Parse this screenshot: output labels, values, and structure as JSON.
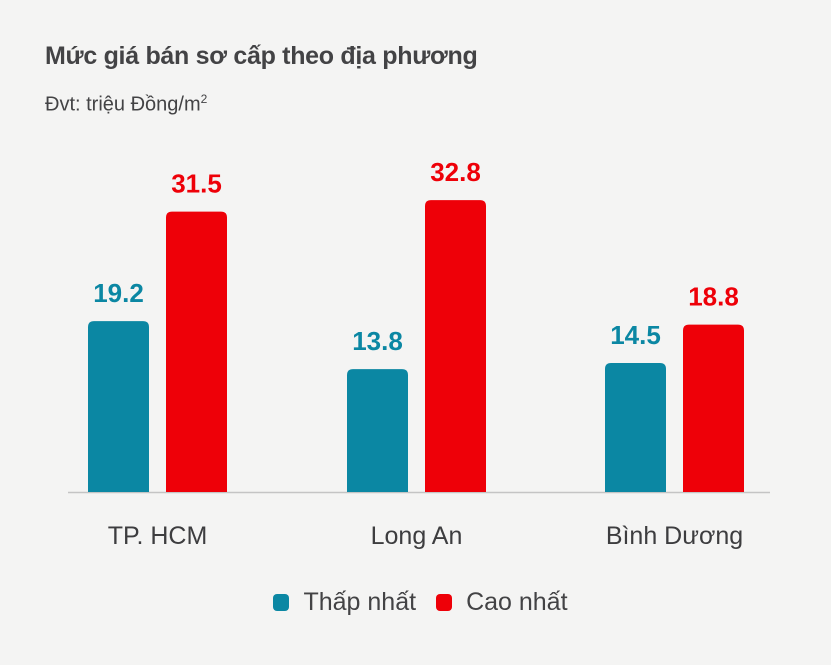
{
  "chart_data": {
    "type": "bar",
    "title": "Mức giá bán sơ cấp theo địa phương",
    "subtitle": "Đvt: triệu Đồng/m",
    "subtitle_sup": "2",
    "categories": [
      "TP. HCM",
      "Long An",
      "Bình Dương"
    ],
    "series": [
      {
        "name": "Thấp nhất",
        "color": "#0b87a3",
        "values": [
          19.2,
          13.8,
          14.5
        ],
        "labels": [
          "19.2",
          "13.8",
          "14.5"
        ]
      },
      {
        "name": "Cao nhất",
        "color": "#ee0008",
        "values": [
          31.5,
          32.8,
          18.8
        ],
        "labels": [
          "31.5",
          "32.8",
          "18.8"
        ]
      }
    ],
    "ylim": [
      0,
      35
    ],
    "grid": false,
    "legend_position": "bottom"
  }
}
